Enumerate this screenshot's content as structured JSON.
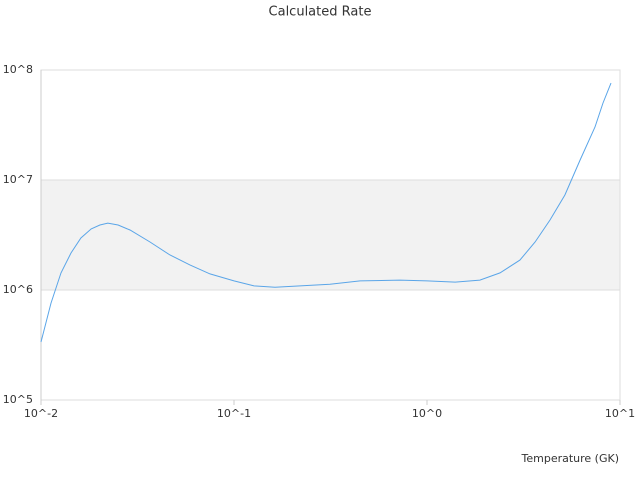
{
  "chart_data": {
    "type": "line",
    "title": "Calculated Rate",
    "x_label": "Temperature (GK)",
    "log_x": true,
    "log_y": true,
    "grid": true,
    "xlim": [
      0.01,
      10
    ],
    "ylim": [
      100000,
      100000000
    ],
    "xticks": [
      {
        "value": 0.01,
        "label": "10^-2"
      },
      {
        "value": 0.1,
        "label": "10^-1"
      },
      {
        "value": 1,
        "label": "10^0"
      },
      {
        "value": 10,
        "label": "10^1"
      }
    ],
    "yticks": [
      {
        "value": 100000,
        "label": "10^5"
      },
      {
        "value": 1000000,
        "label": "10^6"
      },
      {
        "value": 10000000,
        "label": "10^7"
      },
      {
        "value": 100000000,
        "label": "10^8"
      }
    ],
    "series": [
      {
        "color": "#5aa5e8",
        "x": [
          0.01,
          0.01127,
          0.0127,
          0.0143,
          0.0161,
          0.0182,
          0.0202,
          0.0222,
          0.0251,
          0.0289,
          0.0367,
          0.0466,
          0.0591,
          0.0751,
          0.1,
          0.127,
          0.163,
          0.22,
          0.314,
          0.45,
          0.724,
          1,
          1.4,
          1.88,
          2.39,
          3.03,
          3.63,
          4.34,
          5.18,
          6.21,
          7.42,
          8.16,
          8.98
        ],
        "values": [
          337000,
          760000,
          1430000,
          2170000,
          2970000,
          3590000,
          3900000,
          4060000,
          3900000,
          3510000,
          2730000,
          2080000,
          1690000,
          1400000,
          1210000,
          1090000,
          1060000,
          1090000,
          1130000,
          1210000,
          1230000,
          1210000,
          1180000,
          1230000,
          1430000,
          1870000,
          2730000,
          4330000,
          7300000,
          15200000,
          30300000,
          50100000,
          76000000
        ]
      }
    ]
  }
}
